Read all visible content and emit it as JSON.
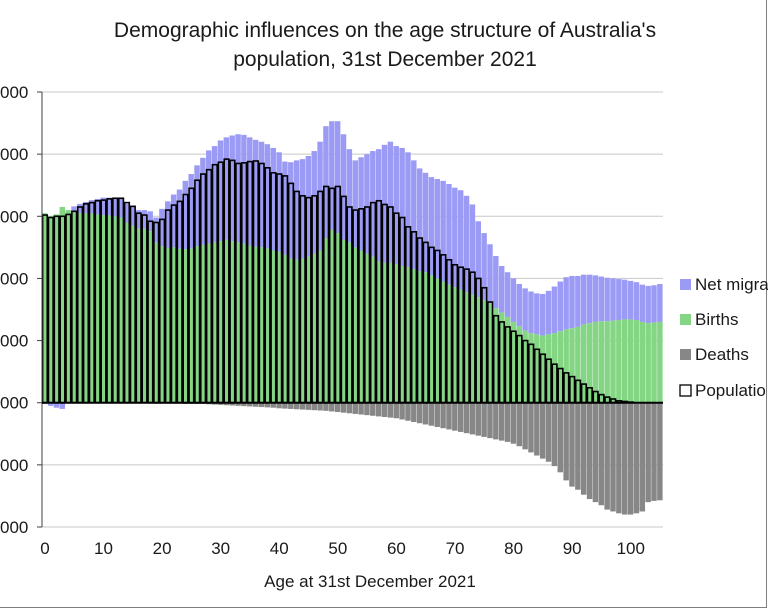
{
  "chart_data": {
    "type": "bar",
    "title": [
      "Demographic influences on the age structure of Australia's",
      "population, 31st December 2021"
    ],
    "xlabel": "Age at 31st December 2021",
    "ylabel": "",
    "ylim": [
      -200000,
      500000
    ],
    "yticks": [
      -200000,
      -100000,
      0,
      100000,
      200000,
      300000,
      400000,
      500000
    ],
    "ytick_labels": [
      "000",
      "000",
      "000",
      "000",
      "000",
      "000",
      "000",
      "000"
    ],
    "xticks": [
      0,
      10,
      20,
      30,
      40,
      50,
      60,
      70,
      80,
      90,
      100
    ],
    "xlim": [
      0,
      105
    ],
    "grid": true,
    "legend_position": "right",
    "legend": [
      "Net migra",
      "Births",
      "Deaths",
      "Populatio"
    ],
    "colors": {
      "net_migration": "#9b9bf5",
      "births": "#84d684",
      "deaths": "#878787",
      "population_outline": "#000000",
      "grid": "#c8c8c8"
    },
    "series": [
      {
        "name": "Births",
        "values": [
          305000,
          300000,
          303000,
          315000,
          310000,
          306000,
          305000,
          305000,
          304000,
          303000,
          302000,
          301000,
          300000,
          298000,
          290000,
          285000,
          280000,
          280000,
          276000,
          258000,
          252000,
          249000,
          250000,
          248000,
          247000,
          248000,
          252000,
          254000,
          256000,
          258000,
          260000,
          262000,
          260000,
          258000,
          256000,
          253000,
          251000,
          250000,
          248000,
          245000,
          243000,
          238000,
          232000,
          230000,
          232000,
          235000,
          240000,
          245000,
          265000,
          278000,
          273000,
          262000,
          258000,
          250000,
          245000,
          240000,
          235000,
          228000,
          225000,
          225000,
          223000,
          220000,
          218000,
          215000,
          212000,
          210000,
          205000,
          200000,
          195000,
          190000,
          186000,
          182000,
          178000,
          174000,
          170000,
          165000,
          160000,
          152000,
          145000,
          138000,
          130000,
          123000,
          116000,
          112000,
          110000,
          108000,
          110000,
          112000,
          115000,
          118000,
          120000,
          122000,
          126000,
          128000,
          130000,
          131000,
          131000,
          132000,
          133000,
          134000,
          134000,
          133000,
          130000,
          128000,
          129000,
          130000
        ]
      },
      {
        "name": "Net migration",
        "values": [
          -2000,
          -5000,
          -8000,
          -10000,
          0,
          10000,
          15000,
          18000,
          22000,
          25000,
          28000,
          29000,
          30000,
          31000,
          30000,
          30000,
          30000,
          30000,
          32000,
          40000,
          60000,
          75000,
          85000,
          95000,
          110000,
          120000,
          130000,
          140000,
          150000,
          155000,
          162000,
          165000,
          170000,
          174000,
          175000,
          174000,
          172000,
          170000,
          168000,
          165000,
          160000,
          150000,
          155000,
          160000,
          160000,
          162000,
          165000,
          175000,
          180000,
          175000,
          180000,
          170000,
          150000,
          140000,
          150000,
          160000,
          170000,
          180000,
          190000,
          195000,
          190000,
          190000,
          185000,
          175000,
          165000,
          160000,
          158000,
          160000,
          162000,
          162000,
          160000,
          160000,
          155000,
          145000,
          122000,
          108000,
          95000,
          84000,
          75000,
          72000,
          70000,
          68000,
          68000,
          67000,
          66000,
          67000,
          70000,
          75000,
          80000,
          84000,
          84000,
          82000,
          80000,
          78000,
          75000,
          72000,
          70000,
          68000,
          66000,
          64000,
          62000,
          61000,
          60000,
          60000,
          60000,
          61000
        ]
      },
      {
        "name": "Deaths",
        "values": [
          -1000,
          -1000,
          -1000,
          -1000,
          -1000,
          -1000,
          -1000,
          -1000,
          -1000,
          -1000,
          -1000,
          -1000,
          -1000,
          -1000,
          -1000,
          -1000,
          -1000,
          -1000,
          -1000,
          -1500,
          -1500,
          -1500,
          -1500,
          -1500,
          -2000,
          -2000,
          -2000,
          -2000,
          -2500,
          -3000,
          -3500,
          -4000,
          -4500,
          -5000,
          -5500,
          -6000,
          -6500,
          -7000,
          -7500,
          -8000,
          -9000,
          -9500,
          -10000,
          -10500,
          -11000,
          -11500,
          -12000,
          -12500,
          -13000,
          -14000,
          -15000,
          -16000,
          -17000,
          -18000,
          -19000,
          -20000,
          -21000,
          -22000,
          -23000,
          -24000,
          -25000,
          -27000,
          -29000,
          -31000,
          -33000,
          -35000,
          -37000,
          -39000,
          -41000,
          -43000,
          -45000,
          -47000,
          -49000,
          -51000,
          -53000,
          -55000,
          -57000,
          -59000,
          -61000,
          -63000,
          -66000,
          -70000,
          -75000,
          -80000,
          -85000,
          -90000,
          -95000,
          -102000,
          -112000,
          -125000,
          -135000,
          -140000,
          -148000,
          -155000,
          -160000,
          -165000,
          -172000,
          -175000,
          -178000,
          -180000,
          -180000,
          -178000,
          -175000,
          -160000,
          -158000,
          -157000
        ]
      },
      {
        "name": "Population",
        "values": [
          302000,
          298000,
          300000,
          300000,
          303000,
          308000,
          315000,
          320000,
          322000,
          325000,
          326000,
          328000,
          329000,
          329000,
          322000,
          316000,
          305000,
          302000,
          292000,
          290000,
          295000,
          310000,
          318000,
          324000,
          335000,
          345000,
          358000,
          368000,
          375000,
          383000,
          387000,
          392000,
          390000,
          385000,
          386000,
          388000,
          389000,
          385000,
          378000,
          370000,
          368000,
          365000,
          353000,
          340000,
          333000,
          330000,
          333000,
          340000,
          348000,
          345000,
          348000,
          332000,
          315000,
          310000,
          312000,
          315000,
          322000,
          325000,
          319000,
          315000,
          305000,
          298000,
          283000,
          275000,
          265000,
          258000,
          250000,
          245000,
          238000,
          230000,
          222000,
          218000,
          215000,
          210000,
          200000,
          185000,
          162000,
          140000,
          130000,
          122000,
          115000,
          108000,
          100000,
          94000,
          86000,
          78000,
          70000,
          62000,
          55000,
          48000,
          42000,
          36000,
          30000,
          24000,
          18000,
          13000,
          9000,
          6000,
          3000,
          2000,
          1000,
          0,
          0,
          0,
          0,
          0
        ]
      }
    ]
  }
}
